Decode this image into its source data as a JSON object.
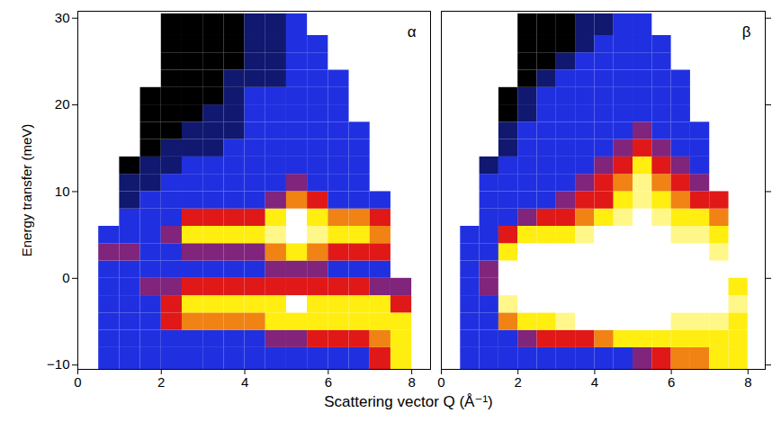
{
  "chart_data": [
    {
      "type": "heatmap",
      "title": "α",
      "x_label": "Scattering vector Q (Å⁻¹)",
      "y_label": "Energy transfer (meV)",
      "xlim": [
        0,
        8.45
      ],
      "ylim": [
        -10.5,
        30.8
      ],
      "xticks": [
        0,
        2,
        4,
        6,
        8
      ],
      "yticks": [
        -10,
        0,
        10,
        20,
        30
      ],
      "zlim": [
        0,
        4
      ],
      "x_edges": [
        0,
        0.5,
        1,
        1.5,
        2,
        2.5,
        3,
        3.5,
        4,
        4.5,
        5,
        5.5,
        6,
        6.5,
        7,
        7.5,
        8,
        8.5
      ],
      "y_edges": [
        -10.5,
        -8,
        -6,
        -4,
        -2,
        0,
        2,
        4,
        6,
        8,
        10,
        12,
        14,
        16,
        18,
        20,
        22,
        24,
        26,
        28,
        30.5
      ],
      "cells": [
        [
          null,
          1,
          1,
          1,
          1,
          1,
          1,
          1,
          1,
          1,
          1,
          1,
          1,
          1,
          2,
          3,
          null
        ],
        [
          null,
          1,
          1,
          1,
          1,
          1,
          1,
          1,
          1,
          1.5,
          1.5,
          2,
          2,
          2,
          2.5,
          3,
          null
        ],
        [
          null,
          1,
          1,
          1,
          2,
          2.5,
          2.5,
          2.5,
          2.5,
          3,
          3,
          3,
          3,
          3,
          3,
          3,
          null
        ],
        [
          null,
          1,
          1,
          1,
          2,
          3,
          3,
          3,
          3,
          3,
          4,
          3,
          3,
          3,
          3,
          2,
          null
        ],
        [
          null,
          1,
          1,
          1.5,
          1.5,
          2,
          2,
          2,
          2,
          2,
          2,
          2,
          2,
          2,
          1.5,
          1.5,
          null
        ],
        [
          null,
          1,
          1,
          1,
          1,
          1,
          1,
          1,
          1,
          1.5,
          1.5,
          1.5,
          1,
          1,
          1,
          null,
          null
        ],
        [
          null,
          1.5,
          1.5,
          1,
          1,
          1.5,
          1.5,
          1.5,
          1.5,
          2.5,
          3,
          2.5,
          2,
          2,
          2,
          null,
          null
        ],
        [
          null,
          1,
          1,
          1,
          1.5,
          3,
          3,
          3,
          3,
          3.5,
          4,
          3.5,
          3,
          3,
          2.5,
          null,
          null
        ],
        [
          null,
          null,
          1,
          1,
          1,
          2,
          2,
          2,
          2,
          3,
          4,
          3,
          2.5,
          2.5,
          2,
          null,
          null
        ],
        [
          null,
          null,
          0.5,
          1,
          1,
          1,
          1,
          1,
          1,
          1.5,
          2.5,
          2,
          1,
          1,
          1,
          null,
          null
        ],
        [
          null,
          null,
          0.5,
          0.5,
          1,
          1,
          1,
          1,
          1,
          1,
          1.5,
          1,
          1,
          1,
          null,
          null,
          null
        ],
        [
          null,
          null,
          0,
          0.5,
          0.5,
          1,
          1,
          1,
          1,
          1,
          1,
          1,
          1,
          1,
          null,
          null,
          null
        ],
        [
          null,
          null,
          null,
          0,
          0.5,
          0.5,
          0.5,
          1,
          1,
          1,
          1,
          1,
          1,
          1,
          null,
          null,
          null
        ],
        [
          null,
          null,
          null,
          0,
          0,
          0.5,
          0.5,
          0.5,
          1,
          1,
          1,
          1,
          1,
          1,
          null,
          null,
          null
        ],
        [
          null,
          null,
          null,
          0,
          0,
          0,
          0.5,
          0.5,
          1,
          1,
          1,
          1,
          1,
          null,
          null,
          null,
          null
        ],
        [
          null,
          null,
          null,
          0,
          0,
          0,
          0,
          0.5,
          1,
          1,
          1,
          1,
          1,
          null,
          null,
          null,
          null
        ],
        [
          null,
          null,
          null,
          null,
          0,
          0,
          0,
          0.5,
          0.5,
          0.5,
          1,
          1,
          1,
          null,
          null,
          null,
          null
        ],
        [
          null,
          null,
          null,
          null,
          0,
          0,
          0,
          0,
          0.5,
          0.5,
          1,
          1,
          null,
          null,
          null,
          null,
          null
        ],
        [
          null,
          null,
          null,
          null,
          0,
          0,
          0,
          0,
          0.5,
          0.5,
          1,
          1,
          null,
          null,
          null,
          null,
          null
        ],
        [
          null,
          null,
          null,
          null,
          0,
          0,
          0,
          0,
          0.5,
          0.5,
          1,
          null,
          null,
          null,
          null,
          null,
          null
        ]
      ]
    },
    {
      "type": "heatmap",
      "title": "β",
      "xlim": [
        0,
        8.45
      ],
      "ylim": [
        -10.5,
        30.8
      ],
      "xticks": [
        0,
        2,
        4,
        6,
        8
      ],
      "yticks": [
        -10,
        0,
        10,
        20,
        30
      ],
      "tick_labels": "x",
      "zlim": [
        0,
        4
      ],
      "x_edges": [
        0,
        0.5,
        1,
        1.5,
        2,
        2.5,
        3,
        3.5,
        4,
        4.5,
        5,
        5.5,
        6,
        6.5,
        7,
        7.5,
        8,
        8.5
      ],
      "y_edges": [
        -10.5,
        -8,
        -6,
        -4,
        -2,
        0,
        2,
        4,
        6,
        8,
        10,
        12,
        14,
        16,
        18,
        20,
        22,
        24,
        26,
        28,
        30.5
      ],
      "cells": [
        [
          null,
          1,
          1,
          1,
          1,
          1,
          1,
          1,
          1,
          1,
          1.5,
          2,
          2.5,
          2.5,
          3,
          3,
          null
        ],
        [
          null,
          1,
          1,
          1,
          1.5,
          2,
          2,
          2,
          2.5,
          3,
          3,
          3,
          3,
          3,
          3,
          3,
          null
        ],
        [
          null,
          1,
          1,
          2.5,
          3,
          3,
          3.5,
          4,
          4,
          4,
          4,
          4,
          3.5,
          3.5,
          3.5,
          3,
          null
        ],
        [
          null,
          1,
          1,
          3.5,
          4,
          4,
          4,
          4,
          4,
          4,
          4,
          4,
          4,
          4,
          4,
          3.5,
          null
        ],
        [
          null,
          1,
          1.5,
          4,
          4,
          4,
          4,
          4,
          4,
          4,
          4,
          4,
          4,
          4,
          4,
          3,
          null
        ],
        [
          null,
          1,
          1.5,
          4,
          4,
          4,
          4,
          4,
          4,
          4,
          4,
          4,
          4,
          4,
          4,
          null,
          null
        ],
        [
          null,
          1,
          1,
          3,
          4,
          4,
          4,
          4,
          4,
          4,
          4,
          4,
          4,
          4,
          3.5,
          null,
          null
        ],
        [
          null,
          1,
          1,
          2,
          3,
          3,
          3,
          3.5,
          4,
          4,
          4,
          4,
          3.5,
          3.5,
          3,
          null,
          null
        ],
        [
          null,
          null,
          1,
          1,
          1.5,
          2,
          2,
          2.5,
          3,
          3.5,
          4,
          3.5,
          3,
          3,
          2.5,
          null,
          null
        ],
        [
          null,
          null,
          1,
          1,
          1,
          1,
          1.5,
          2,
          2,
          3,
          3.5,
          3,
          2.5,
          2,
          2,
          null,
          null
        ],
        [
          null,
          null,
          1,
          1,
          1,
          1,
          1,
          1.5,
          2,
          2.5,
          3.5,
          2.5,
          2,
          1.5,
          null,
          null,
          null
        ],
        [
          null,
          null,
          0.5,
          1,
          1,
          1,
          1,
          1,
          1.5,
          2,
          3,
          2,
          1.5,
          1,
          null,
          null,
          null
        ],
        [
          null,
          null,
          null,
          0.5,
          1,
          1,
          1,
          1,
          1,
          1.5,
          2,
          1.5,
          1,
          1,
          null,
          null,
          null
        ],
        [
          null,
          null,
          null,
          0.5,
          1,
          1,
          1,
          1,
          1,
          1,
          1.5,
          1,
          1,
          1,
          null,
          null,
          null
        ],
        [
          null,
          null,
          null,
          0,
          0.5,
          1,
          1,
          1,
          1,
          1,
          1,
          1,
          1,
          null,
          null,
          null,
          null
        ],
        [
          null,
          null,
          null,
          0,
          0.5,
          1,
          1,
          1,
          1,
          1,
          1,
          1,
          1,
          null,
          null,
          null,
          null
        ],
        [
          null,
          null,
          null,
          null,
          0,
          0.5,
          1,
          1,
          1,
          1,
          1,
          1,
          1,
          null,
          null,
          null,
          null
        ],
        [
          null,
          null,
          null,
          null,
          0,
          0,
          0.5,
          1,
          1,
          1,
          1,
          1,
          null,
          null,
          null,
          null,
          null
        ],
        [
          null,
          null,
          null,
          null,
          0,
          0,
          0,
          0.5,
          1,
          1,
          1,
          1,
          null,
          null,
          null,
          null,
          null
        ],
        [
          null,
          null,
          null,
          null,
          0,
          0,
          0,
          0.5,
          0.5,
          1,
          1,
          null,
          null,
          null,
          null,
          null,
          null
        ]
      ]
    }
  ]
}
